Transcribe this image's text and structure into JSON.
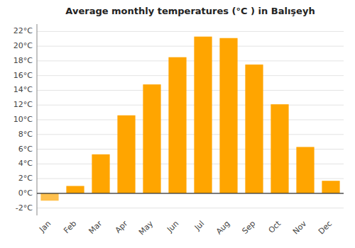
{
  "chart_data": {
    "type": "bar",
    "title": "Average monthly temperatures (°C ) in Balışeyh",
    "categories": [
      "Jan",
      "Feb",
      "Mar",
      "Apr",
      "May",
      "Jun",
      "Jul",
      "Aug",
      "Sep",
      "Oct",
      "Nov",
      "Dec"
    ],
    "values": [
      -1.0,
      1.0,
      5.3,
      10.6,
      14.8,
      18.5,
      21.3,
      21.1,
      17.5,
      12.1,
      6.3,
      1.7
    ],
    "colors": [
      "#FFC04D",
      "#FFA500",
      "#FFA500",
      "#FFA500",
      "#FFA500",
      "#FFA500",
      "#FFA500",
      "#FFA500",
      "#FFA500",
      "#FFA500",
      "#FFA500",
      "#FFA500"
    ],
    "ylim": [
      -3,
      23
    ],
    "yticks": [
      {
        "value": -2,
        "label": "-2°C"
      },
      {
        "value": 0,
        "label": "0°C"
      },
      {
        "value": 2,
        "label": "2°C"
      },
      {
        "value": 4,
        "label": "4°C"
      },
      {
        "value": 6,
        "label": "6°C"
      },
      {
        "value": 8,
        "label": "8°C"
      },
      {
        "value": 10,
        "label": "10°C"
      },
      {
        "value": 12,
        "label": "12°C"
      },
      {
        "value": 14,
        "label": "14°C"
      },
      {
        "value": 16,
        "label": "16°C"
      },
      {
        "value": 18,
        "label": "18°C"
      },
      {
        "value": 20,
        "label": "20°C"
      },
      {
        "value": 22,
        "label": "22°C"
      }
    ],
    "grid": true
  }
}
